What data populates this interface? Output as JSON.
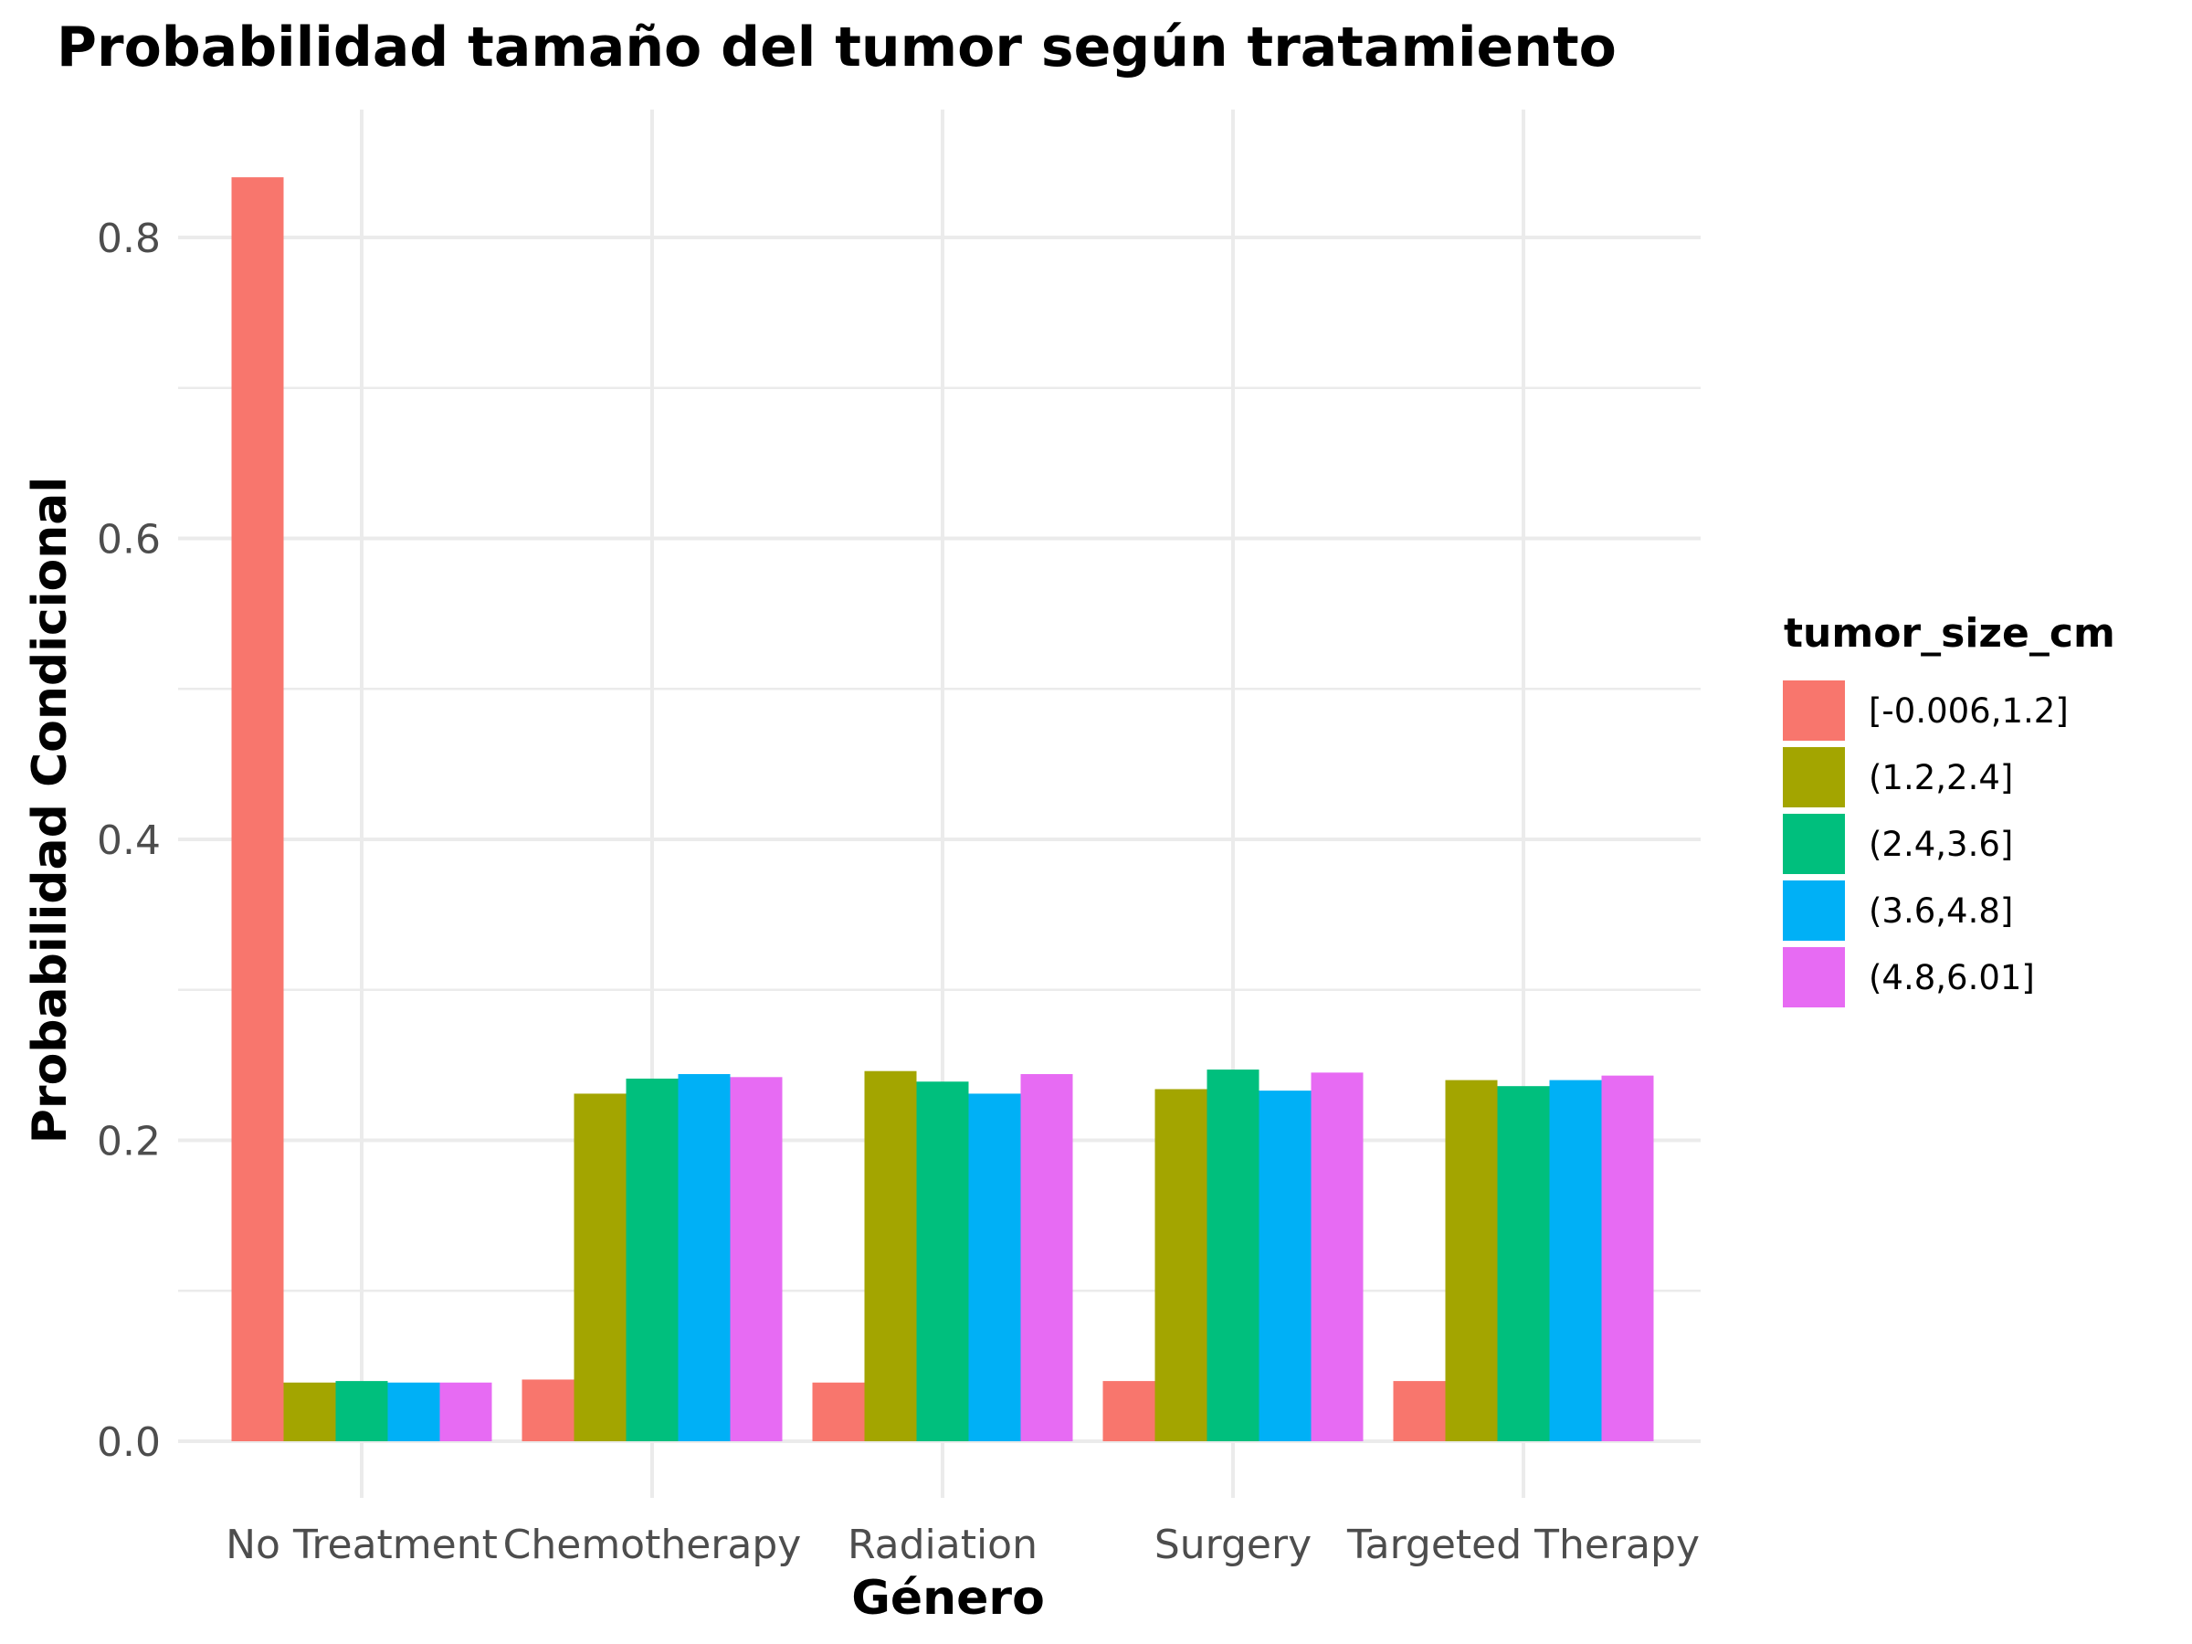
{
  "chart_data": {
    "type": "bar",
    "title": "Probabilidad tamaño del tumor según tratamiento",
    "xlabel": "Género",
    "ylabel": "Probabilidad Condicional",
    "ylim": [
      -0.04,
      0.88
    ],
    "yticks": [
      0.0,
      0.2,
      0.4,
      0.6,
      0.8
    ],
    "ytick_labels": [
      "0.0",
      "0.2",
      "0.4",
      "0.6",
      "0.8"
    ],
    "grid": true,
    "legend_position": "right",
    "legend_title": "tumor_size_cm",
    "categories": [
      "No Treatment",
      "Chemotherapy",
      "Radiation",
      "Surgery",
      "Targeted Therapy"
    ],
    "series": [
      {
        "name": "[-0.006,1.2]",
        "color": "#F8766D",
        "values": [
          0.84,
          0.041,
          0.039,
          0.04,
          0.04
        ]
      },
      {
        "name": "(1.2,2.4]",
        "color": "#A3A500",
        "values": [
          0.039,
          0.231,
          0.246,
          0.234,
          0.24
        ]
      },
      {
        "name": "(2.4,3.6]",
        "color": "#00BF7D",
        "values": [
          0.04,
          0.241,
          0.239,
          0.247,
          0.236
        ]
      },
      {
        "name": "(3.6,4.8]",
        "color": "#00B0F6",
        "values": [
          0.039,
          0.244,
          0.231,
          0.233,
          0.24
        ]
      },
      {
        "name": "(4.8,6.01]",
        "color": "#E76BF3",
        "values": [
          0.039,
          0.242,
          0.244,
          0.245,
          0.243
        ]
      }
    ]
  }
}
